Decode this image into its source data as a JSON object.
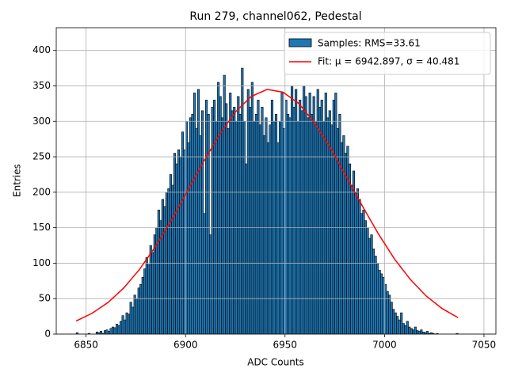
{
  "chart_data": {
    "type": "histogram",
    "title": "Run 279, channel062, Pedestal",
    "xlabel": "ADC Counts",
    "ylabel": "Entries",
    "hist_name": "Samples: RMS=33.61",
    "color": "#1f77b4",
    "edgecolor": "#000000",
    "bins": [
      6845,
      6846,
      6847,
      6848,
      6849,
      6850,
      6851,
      6852,
      6853,
      6854,
      6855,
      6856,
      6857,
      6858,
      6859,
      6860,
      6861,
      6862,
      6863,
      6864,
      6865,
      6866,
      6867,
      6868,
      6869,
      6870,
      6871,
      6872,
      6873,
      6874,
      6875,
      6876,
      6877,
      6878,
      6879,
      6880,
      6881,
      6882,
      6883,
      6884,
      6885,
      6886,
      6887,
      6888,
      6889,
      6890,
      6891,
      6892,
      6893,
      6894,
      6895,
      6896,
      6897,
      6898,
      6899,
      6900,
      6901,
      6902,
      6903,
      6904,
      6905,
      6906,
      6907,
      6908,
      6909,
      6910,
      6911,
      6912,
      6913,
      6914,
      6915,
      6916,
      6917,
      6918,
      6919,
      6920,
      6921,
      6922,
      6923,
      6924,
      6925,
      6926,
      6927,
      6928,
      6929,
      6930,
      6931,
      6932,
      6933,
      6934,
      6935,
      6936,
      6937,
      6938,
      6939,
      6940,
      6941,
      6942,
      6943,
      6944,
      6945,
      6946,
      6947,
      6948,
      6949,
      6950,
      6951,
      6952,
      6953,
      6954,
      6955,
      6956,
      6957,
      6958,
      6959,
      6960,
      6961,
      6962,
      6963,
      6964,
      6965,
      6966,
      6967,
      6968,
      6969,
      6970,
      6971,
      6972,
      6973,
      6974,
      6975,
      6976,
      6977,
      6978,
      6979,
      6980,
      6981,
      6982,
      6983,
      6984,
      6985,
      6986,
      6987,
      6988,
      6989,
      6990,
      6991,
      6992,
      6993,
      6994,
      6995,
      6996,
      6997,
      6998,
      6999,
      7000,
      7001,
      7002,
      7003,
      7004,
      7005,
      7006,
      7007,
      7008,
      7009,
      7010,
      7011,
      7012,
      7013,
      7014,
      7015,
      7016,
      7017,
      7018,
      7019,
      7020,
      7021,
      7022,
      7023,
      7024,
      7025,
      7026,
      7027,
      7028,
      7029,
      7030,
      7031,
      7032,
      7033,
      7034,
      7035,
      7036,
      7037,
      7038
    ],
    "counts": [
      2,
      0,
      0,
      0,
      0,
      0,
      1,
      0,
      0,
      0,
      3,
      2,
      4,
      1,
      5,
      6,
      4,
      8,
      10,
      9,
      14,
      12,
      18,
      26,
      20,
      30,
      28,
      45,
      38,
      55,
      50,
      65,
      70,
      80,
      92,
      108,
      98,
      125,
      115,
      140,
      150,
      175,
      160,
      190,
      180,
      200,
      205,
      225,
      210,
      255,
      240,
      260,
      250,
      285,
      260,
      300,
      270,
      305,
      310,
      340,
      290,
      345,
      280,
      315,
      170,
      330,
      310,
      140,
      320,
      330,
      300,
      355,
      335,
      305,
      365,
      325,
      290,
      340,
      315,
      320,
      300,
      335,
      310,
      375,
      300,
      240,
      345,
      320,
      355,
      300,
      310,
      330,
      295,
      320,
      280,
      305,
      270,
      295,
      330,
      300,
      310,
      270,
      300,
      340,
      290,
      330,
      310,
      305,
      350,
      320,
      345,
      300,
      330,
      315,
      350,
      335,
      305,
      340,
      310,
      335,
      300,
      345,
      320,
      330,
      300,
      340,
      305,
      315,
      295,
      330,
      340,
      290,
      310,
      270,
      280,
      255,
      265,
      240,
      210,
      230,
      200,
      205,
      190,
      170,
      175,
      160,
      150,
      135,
      140,
      120,
      110,
      100,
      90,
      85,
      80,
      70,
      60,
      55,
      45,
      35,
      30,
      25,
      20,
      30,
      15,
      12,
      18,
      10,
      8,
      6,
      10,
      5,
      4,
      6,
      3,
      2,
      4,
      1,
      2,
      1,
      0,
      1,
      0,
      0,
      0,
      0,
      0,
      0,
      0,
      0,
      0,
      1,
      0
    ],
    "fit": {
      "name": "Fit: μ = 6942.897, σ = 40.481",
      "color": "#ff0000",
      "x": [
        6845,
        6853,
        6861,
        6869,
        6877,
        6885,
        6893,
        6901,
        6909,
        6917,
        6925,
        6933,
        6941,
        6949,
        6957,
        6965,
        6973,
        6981,
        6989,
        6997,
        7005,
        7013,
        7021,
        7029,
        7037
      ],
      "values": [
        18.5,
        29.3,
        44.5,
        65.2,
        91.7,
        124,
        161,
        202,
        243,
        281,
        313,
        335,
        345,
        341,
        325,
        297,
        262,
        221,
        180,
        141,
        106,
        77,
        53.6,
        35.9,
        23.2
      ]
    },
    "xlim": [
      6835,
      7056
    ],
    "ylim": [
      0,
      432
    ],
    "xticks": [
      6850,
      6900,
      6950,
      7000,
      7050
    ],
    "yticks": [
      0,
      50,
      100,
      150,
      200,
      250,
      300,
      350,
      400
    ],
    "grid": true,
    "legend": "upper right"
  }
}
